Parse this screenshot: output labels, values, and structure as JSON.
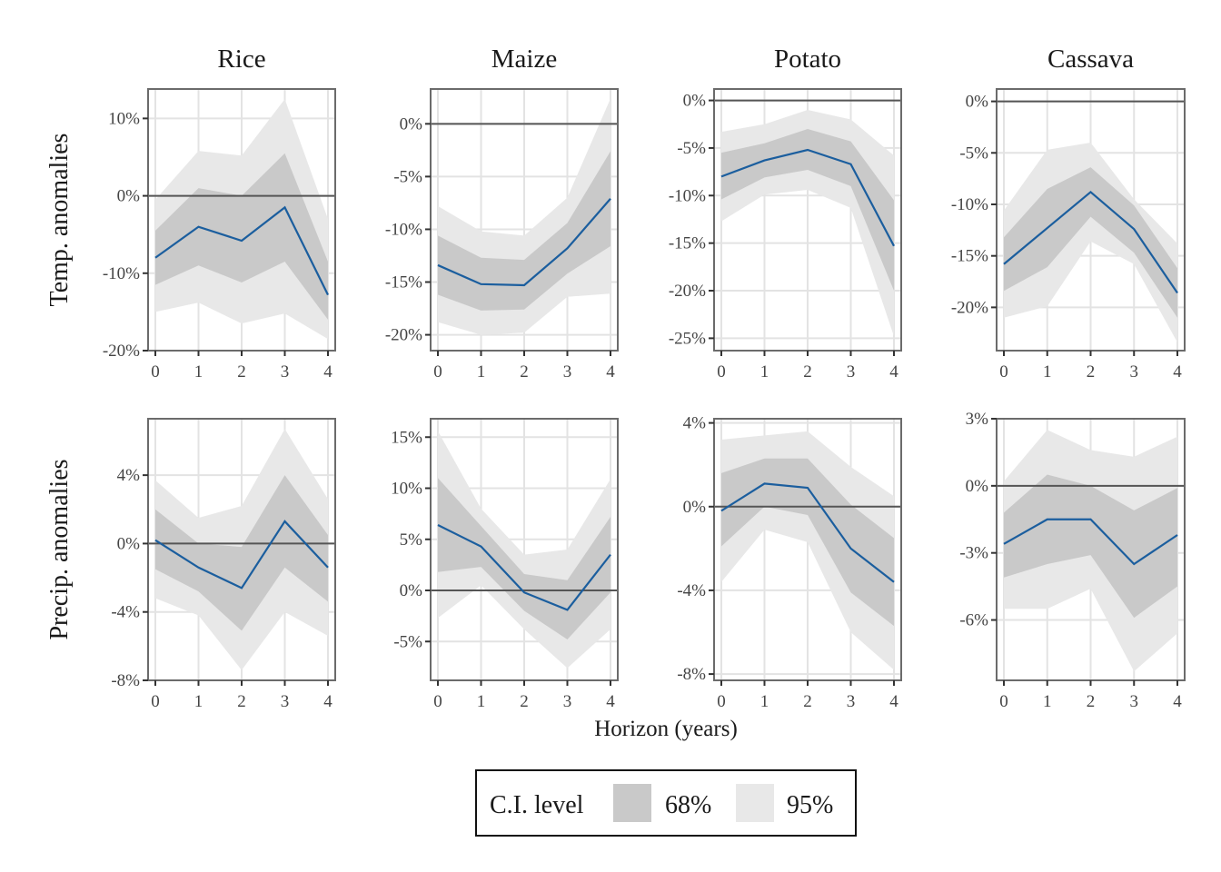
{
  "chart_data": {
    "type": "line",
    "x": [
      0,
      1,
      2,
      3,
      4
    ],
    "xlabel": "Horizon (years)",
    "columns": [
      "Rice",
      "Maize",
      "Potato",
      "Cassava"
    ],
    "rows": [
      "Temp. anomalies",
      "Precip. anomalies"
    ],
    "legend": {
      "title": "C.I. level",
      "items": [
        "68%",
        "95%"
      ],
      "colors": [
        "#c9c9c9",
        "#e8e8e8"
      ],
      "placement": "bottom"
    },
    "colors": {
      "line": "#1b5e9e",
      "zero_line": "#555555",
      "grid": "#e3e3e3",
      "panel_border": "#6b6b6b"
    },
    "grid": true,
    "panels": [
      {
        "crop": "Rice",
        "row": "Temp. anomalies",
        "ylim": [
          -20,
          13.8
        ],
        "yticks": [
          10,
          0,
          -10,
          -20
        ],
        "ytick_labels": [
          "10%",
          "0%",
          "-10%",
          "-20%"
        ],
        "values": [
          -8.0,
          -4.0,
          -5.8,
          -1.5,
          -12.8
        ],
        "ci68": [
          [
            -11.5,
            -4.5
          ],
          [
            -9.0,
            1.0
          ],
          [
            -11.2,
            0.0
          ],
          [
            -8.5,
            5.5
          ],
          [
            -16.0,
            -8.5
          ]
        ],
        "ci95": [
          [
            -15.0,
            -0.5
          ],
          [
            -13.8,
            5.8
          ],
          [
            -16.5,
            5.2
          ],
          [
            -15.2,
            12.5
          ],
          [
            -18.5,
            -3.0
          ]
        ]
      },
      {
        "crop": "Maize",
        "row": "Temp. anomalies",
        "ylim": [
          -21.5,
          3.3
        ],
        "yticks": [
          0,
          -5,
          -10,
          -15,
          -20
        ],
        "ytick_labels": [
          "0%",
          "-5%",
          "-10%",
          "-15%",
          "-20%"
        ],
        "values": [
          -13.4,
          -15.2,
          -15.3,
          -11.8,
          -7.1
        ],
        "ci68": [
          [
            -16.2,
            -10.6
          ],
          [
            -17.7,
            -12.7
          ],
          [
            -17.6,
            -12.9
          ],
          [
            -14.2,
            -9.4
          ],
          [
            -11.6,
            -2.6
          ]
        ],
        "ci95": [
          [
            -18.8,
            -7.8
          ],
          [
            -20.0,
            -10.2
          ],
          [
            -19.8,
            -10.6
          ],
          [
            -16.4,
            -7.0
          ],
          [
            -16.1,
            2.4
          ]
        ]
      },
      {
        "crop": "Potato",
        "row": "Temp. anomalies",
        "ylim": [
          -26.3,
          1.2
        ],
        "yticks": [
          0,
          -5,
          -10,
          -15,
          -20,
          -25
        ],
        "ytick_labels": [
          "0%",
          "-5%",
          "-10%",
          "-15%",
          "-20%",
          "-25%"
        ],
        "values": [
          -8.0,
          -6.3,
          -5.2,
          -6.7,
          -15.3
        ],
        "ci68": [
          [
            -10.4,
            -5.5
          ],
          [
            -8.1,
            -4.5
          ],
          [
            -7.3,
            -3.0
          ],
          [
            -9.0,
            -4.3
          ],
          [
            -20.0,
            -10.5
          ]
        ],
        "ci95": [
          [
            -12.7,
            -3.3
          ],
          [
            -9.9,
            -2.5
          ],
          [
            -9.4,
            -1.0
          ],
          [
            -11.3,
            -2.0
          ],
          [
            -24.8,
            -5.8
          ]
        ]
      },
      {
        "crop": "Cassava",
        "row": "Temp. anomalies",
        "ylim": [
          -24.2,
          1.2
        ],
        "yticks": [
          0,
          -5,
          -10,
          -15,
          -20
        ],
        "ytick_labels": [
          "0%",
          "-5%",
          "-10%",
          "-15%",
          "-20%"
        ],
        "values": [
          -15.8,
          -12.3,
          -8.8,
          -12.4,
          -18.6
        ],
        "ci68": [
          [
            -18.4,
            -13.2
          ],
          [
            -16.1,
            -8.5
          ],
          [
            -11.2,
            -6.4
          ],
          [
            -14.7,
            -10.1
          ],
          [
            -21.0,
            -16.2
          ]
        ],
        "ci95": [
          [
            -21.0,
            -10.6
          ],
          [
            -19.9,
            -4.7
          ],
          [
            -13.6,
            -4.0
          ],
          [
            -15.8,
            -9.5
          ],
          [
            -23.4,
            -13.8
          ]
        ]
      },
      {
        "crop": "Rice",
        "row": "Precip. anomalies",
        "ylim": [
          -8,
          7.3
        ],
        "yticks": [
          4,
          0,
          -4,
          -8
        ],
        "ytick_labels": [
          "4%",
          "0%",
          "-4%",
          "-8%"
        ],
        "values": [
          0.2,
          -1.4,
          -2.6,
          1.3,
          -1.4
        ],
        "ci68": [
          [
            -1.5,
            2.0
          ],
          [
            -2.8,
            0.0
          ],
          [
            -5.1,
            -0.2
          ],
          [
            -1.4,
            4.0
          ],
          [
            -3.4,
            0.5
          ]
        ],
        "ci95": [
          [
            -3.2,
            3.7
          ],
          [
            -4.2,
            1.5
          ],
          [
            -7.4,
            2.2
          ],
          [
            -4.0,
            6.7
          ],
          [
            -5.4,
            2.6
          ]
        ]
      },
      {
        "crop": "Maize",
        "row": "Precip. anomalies",
        "ylim": [
          -8.8,
          16.8
        ],
        "yticks": [
          15,
          10,
          5,
          0,
          -5
        ],
        "ytick_labels": [
          "15%",
          "10%",
          "5%",
          "0%",
          "-5%"
        ],
        "values": [
          6.4,
          4.3,
          -0.2,
          -1.9,
          3.5
        ],
        "ci68": [
          [
            1.8,
            11.0
          ],
          [
            2.3,
            6.3
          ],
          [
            -2.0,
            1.6
          ],
          [
            -4.8,
            1.0
          ],
          [
            -0.2,
            7.2
          ]
        ],
        "ci95": [
          [
            -2.7,
            15.6
          ],
          [
            0.5,
            8.0
          ],
          [
            -3.8,
            3.5
          ],
          [
            -7.6,
            4.0
          ],
          [
            -3.8,
            10.9
          ]
        ]
      },
      {
        "crop": "Potato",
        "row": "Precip. anomalies",
        "ylim": [
          -8.3,
          4.2
        ],
        "yticks": [
          4,
          0,
          -4,
          -8
        ],
        "ytick_labels": [
          "4%",
          "0%",
          "-4%",
          "-8%"
        ],
        "values": [
          -0.2,
          1.1,
          0.9,
          -2.0,
          -3.6
        ],
        "ci68": [
          [
            -1.9,
            1.6
          ],
          [
            0.0,
            2.3
          ],
          [
            -0.4,
            2.3
          ],
          [
            -4.1,
            0.1
          ],
          [
            -5.7,
            -1.5
          ]
        ],
        "ci95": [
          [
            -3.6,
            3.2
          ],
          [
            -1.1,
            3.4
          ],
          [
            -1.7,
            3.6
          ],
          [
            -6.0,
            1.9
          ],
          [
            -7.8,
            0.5
          ]
        ]
      },
      {
        "crop": "Cassava",
        "row": "Precip. anomalies",
        "ylim": [
          -8.7,
          3.0
        ],
        "yticks": [
          3,
          0,
          -3,
          -6
        ],
        "ytick_labels": [
          "3%",
          "0%",
          "-3%",
          "-6%"
        ],
        "values": [
          -2.6,
          -1.5,
          -1.5,
          -3.5,
          -2.2
        ],
        "ci68": [
          [
            -4.1,
            -1.2
          ],
          [
            -3.5,
            0.5
          ],
          [
            -3.1,
            0.0
          ],
          [
            -5.9,
            -1.1
          ],
          [
            -4.5,
            -0.1
          ]
        ],
        "ci95": [
          [
            -5.5,
            0.2
          ],
          [
            -5.5,
            2.5
          ],
          [
            -4.6,
            1.6
          ],
          [
            -8.3,
            1.3
          ],
          [
            -6.6,
            2.2
          ]
        ]
      }
    ]
  }
}
